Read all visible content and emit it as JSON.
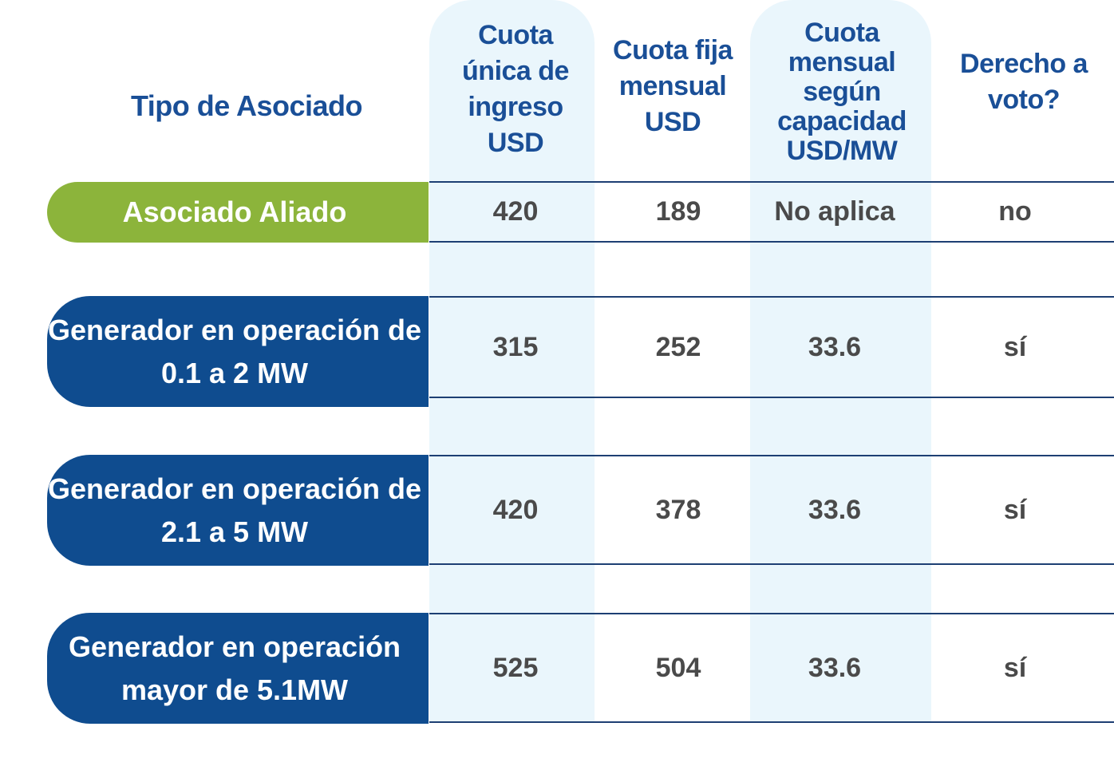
{
  "header": {
    "type_label": "Tipo de Asociado",
    "col1": "Cuota única de ingreso USD",
    "col2": "Cuota fija mensual USD",
    "col3": "Cuota mensual según capacidad USD/MW",
    "col4": "Derecho a voto?"
  },
  "rows": [
    {
      "label": "Asociado Aliado",
      "col1": "420",
      "col2": "189",
      "col3": "No aplica",
      "col4": "no"
    },
    {
      "label": "Generador en operación de  0.1 a 2 MW",
      "col1": "315",
      "col2": "252",
      "col3": "33.6",
      "col4": "sí"
    },
    {
      "label": "Generador en operación de 2.1 a 5 MW",
      "col1": "420",
      "col2": "378",
      "col3": "33.6",
      "col4": "sí"
    },
    {
      "label": "Generador en operación mayor de 5.1MW",
      "col1": "525",
      "col2": "504",
      "col3": "33.6",
      "col4": "sí"
    }
  ],
  "colors": {
    "header_text": "#1a4f97",
    "aliado_green": "#8cb43b",
    "generator_blue": "#0f4c8f",
    "highlight_column": "#eaf6fc",
    "value_text": "#4a4a4a"
  }
}
